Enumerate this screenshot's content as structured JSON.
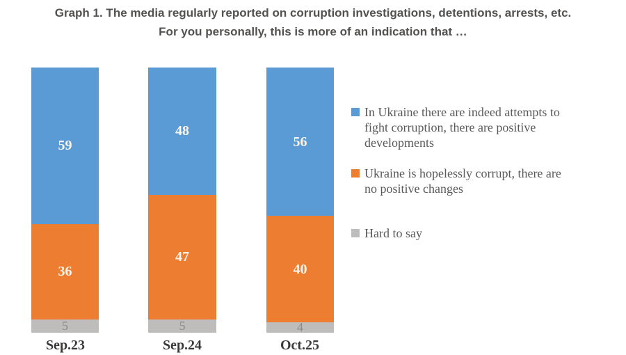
{
  "title": {
    "line1": "Graph 1. The media regularly reported on corruption investigations, detentions, arrests, etc.",
    "line2": "For you personally, this is more of an indication that …"
  },
  "legend": {
    "position": "right",
    "items": [
      {
        "label": "In Ukraine there are indeed attempts to\nfight corruption, there are positive\ndevelopments"
      },
      {
        "label": "Ukraine is hopelessly corrupt, there are\nno positive changes"
      },
      {
        "label": "Hard to say"
      }
    ]
  },
  "chart_data": {
    "type": "bar",
    "stacked": true,
    "orientation": "vertical",
    "categories": [
      "Sep.23",
      "Sep.24",
      "Oct.25"
    ],
    "series": [
      {
        "name": "In Ukraine there are indeed attempts to fight corruption, there are positive developments",
        "values": [
          59,
          48,
          56
        ],
        "color": "#5B9BD5"
      },
      {
        "name": "Ukraine is hopelessly corrupt, there are no positive changes",
        "values": [
          36,
          47,
          40
        ],
        "color": "#ED7D31"
      },
      {
        "name": "Hard to say",
        "values": [
          5,
          5,
          4
        ],
        "color": "#BFBDBC"
      }
    ],
    "ylim": [
      0,
      100
    ],
    "value_labels": true,
    "grid": false,
    "axis_lines": false,
    "legend_position": "right"
  },
  "colors": {
    "background": "#FFFFFF",
    "title_text": "#545250",
    "legend_text": "#595959",
    "category_label_text": "#3B3938",
    "value_label_light": "#FAF4EC",
    "value_label_gray": "#8C8A87"
  }
}
